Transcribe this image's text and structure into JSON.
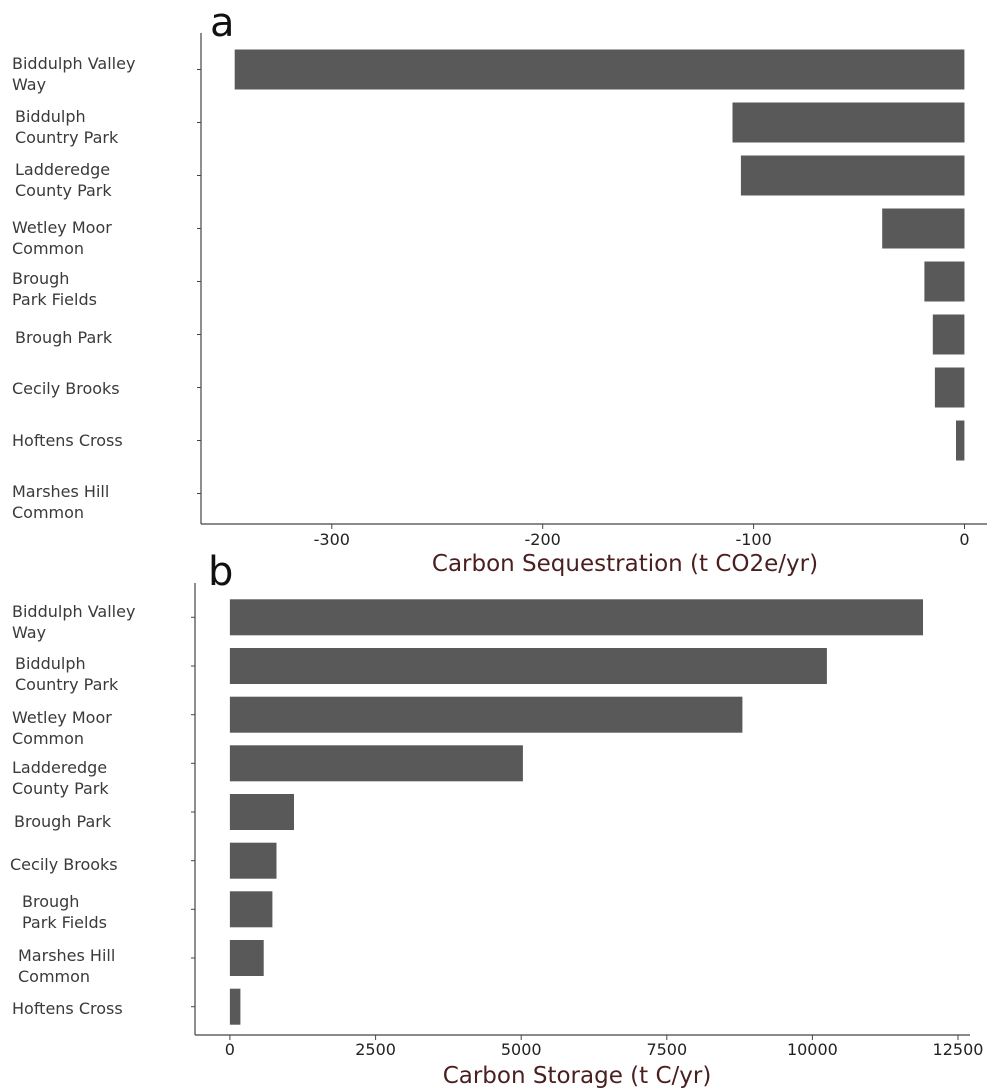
{
  "chart_data": [
    {
      "panel": "a",
      "type": "bar",
      "orientation": "horizontal",
      "categories": [
        [
          "Biddulph Valley",
          "Way"
        ],
        [
          "Biddulph",
          "Country Park"
        ],
        [
          "Ladderedge",
          "County Park"
        ],
        [
          "Wetley Moor",
          "Common"
        ],
        [
          "Brough",
          "Park Fields"
        ],
        [
          "Brough Park"
        ],
        [
          "Cecily Brooks"
        ],
        [
          "Hoftens Cross"
        ],
        [
          "Marshes Hill",
          "Common"
        ]
      ],
      "values": [
        -346,
        -110,
        -106,
        -39,
        -19,
        -15,
        -14,
        -4,
        0
      ],
      "xlabel": "Carbon Sequestration (t CO2e/yr)",
      "xlim": [
        -362,
        5
      ],
      "xticks": [
        -300,
        -200,
        -100,
        0
      ],
      "xtick_labels": [
        "-300",
        "-200",
        "-100",
        "0"
      ],
      "grid": false,
      "bar_color": "#595959"
    },
    {
      "panel": "b",
      "type": "bar",
      "orientation": "horizontal",
      "categories": [
        [
          "Biddulph Valley",
          "Way"
        ],
        [
          "Biddulph",
          "Country Park"
        ],
        [
          "Wetley Moor",
          "Common"
        ],
        [
          "Ladderedge",
          "County Park"
        ],
        [
          "Brough Park"
        ],
        [
          "Cecily Brooks"
        ],
        [
          "Brough",
          "Park Fields"
        ],
        [
          "Marshes Hill",
          "Common"
        ],
        [
          "Hoftens Cross"
        ]
      ],
      "values": [
        11900,
        10250,
        8800,
        5030,
        1100,
        800,
        730,
        580,
        180
      ],
      "xlabel": "Carbon Storage (t C/yr)",
      "xlim": [
        -600,
        12500
      ],
      "xticks": [
        0,
        2500,
        5000,
        7500,
        10000,
        12500
      ],
      "xtick_labels": [
        "0",
        "2500",
        "5000",
        "7500",
        "10000",
        "12500"
      ],
      "grid": false,
      "bar_color": "#595959"
    }
  ]
}
